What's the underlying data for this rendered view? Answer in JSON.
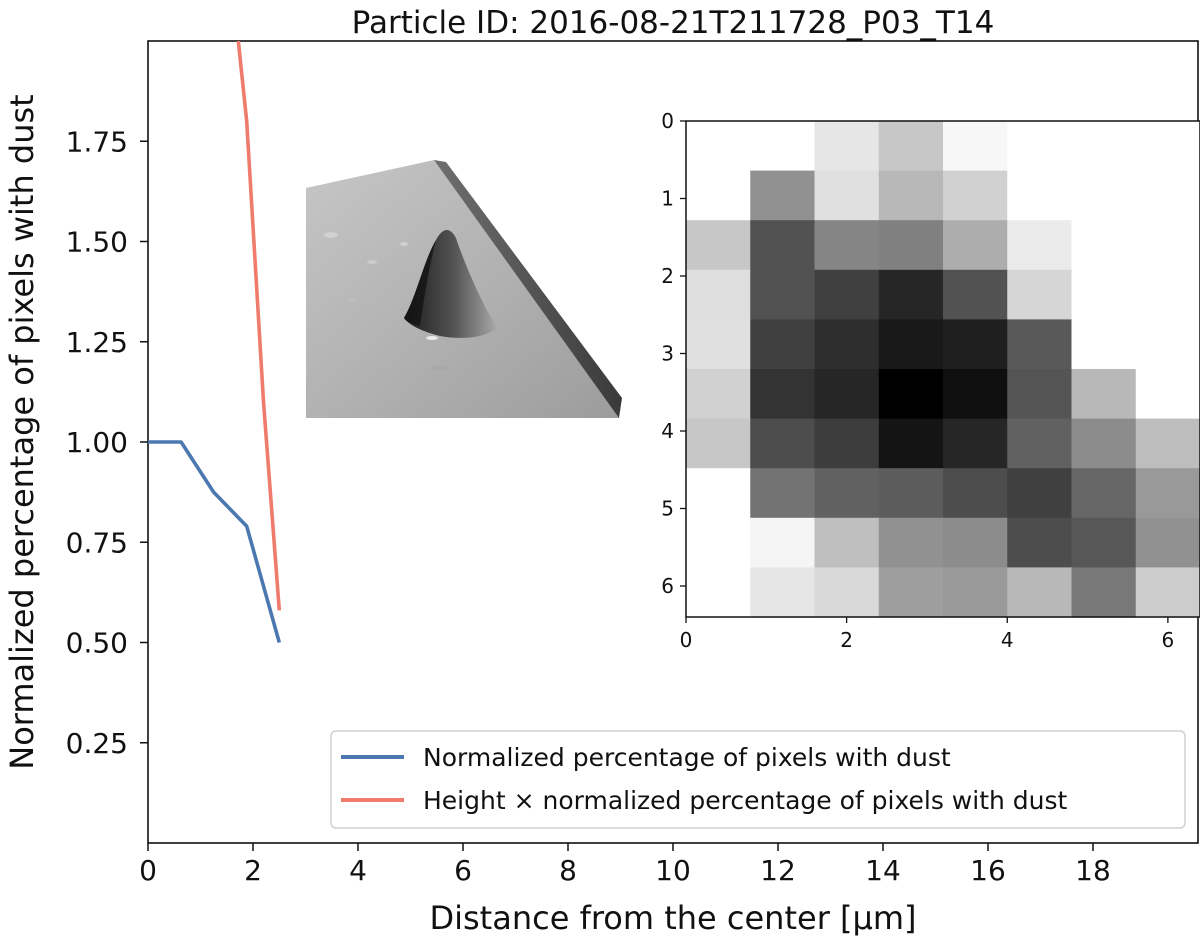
{
  "chart_data": [
    {
      "type": "line",
      "title": "Particle ID: 2016-08-21T211728_P03_T14",
      "xlabel": "Distance from the center [µm]",
      "ylabel": "Normalized percentage of pixels with dust",
      "xlim": [
        0,
        20
      ],
      "ylim": [
        0,
        2.0
      ],
      "xticks": [
        0,
        2,
        4,
        6,
        8,
        10,
        12,
        14,
        16,
        18
      ],
      "yticks": [
        0.25,
        0.5,
        0.75,
        1.0,
        1.25,
        1.5,
        1.75
      ],
      "xtick_labels": [
        "0",
        "2",
        "4",
        "6",
        "8",
        "10",
        "12",
        "14",
        "16",
        "18"
      ],
      "ytick_labels": [
        "0.25",
        "0.50",
        "0.75",
        "1.00",
        "1.25",
        "1.50",
        "1.75"
      ],
      "grid": false,
      "legend_position": "lower right",
      "series": [
        {
          "name": "Normalized percentage of pixels with dust",
          "color": "#4c78b0",
          "x": [
            0,
            0.63,
            1.25,
            1.88,
            2.5
          ],
          "y": [
            1.0,
            1.0,
            0.875,
            0.79,
            0.5
          ]
        },
        {
          "name": "Height × normalized percentage of pixels with dust",
          "color": "#ee7b6b",
          "x": [
            1.72,
            1.88,
            2.2,
            2.5
          ],
          "y": [
            2.0,
            1.8,
            1.1,
            0.58
          ]
        }
      ]
    },
    {
      "type": "heatmap",
      "description_colormap": "gray_r",
      "xticks": [
        0,
        2,
        4,
        6
      ],
      "yticks": [
        0,
        1,
        2,
        3,
        4,
        5,
        6
      ],
      "xtick_labels": [
        "0",
        "2",
        "4",
        "6"
      ],
      "ytick_labels": [
        "0",
        "1",
        "2",
        "3",
        "4",
        "5",
        "6"
      ],
      "extent": [
        0,
        6.4,
        6.4,
        0
      ],
      "values": [
        [
          0.0,
          0.0,
          0.1,
          0.22,
          0.03,
          0.0,
          0.0,
          0.0
        ],
        [
          0.0,
          0.43,
          0.12,
          0.28,
          0.18,
          0.0,
          0.0,
          0.0
        ],
        [
          0.22,
          0.68,
          0.48,
          0.5,
          0.32,
          0.08,
          0.0,
          0.0
        ],
        [
          0.13,
          0.68,
          0.75,
          0.85,
          0.68,
          0.16,
          0.0,
          0.0
        ],
        [
          0.12,
          0.75,
          0.82,
          0.9,
          0.88,
          0.65,
          0.0,
          0.0
        ],
        [
          0.18,
          0.8,
          0.85,
          1.0,
          0.94,
          0.67,
          0.28,
          0.0
        ],
        [
          0.22,
          0.7,
          0.76,
          0.92,
          0.85,
          0.62,
          0.45,
          0.26
        ],
        [
          0.0,
          0.55,
          0.62,
          0.64,
          0.7,
          0.75,
          0.6,
          0.4
        ],
        [
          0.0,
          0.04,
          0.25,
          0.43,
          0.45,
          0.7,
          0.66,
          0.43
        ],
        [
          0.0,
          0.1,
          0.15,
          0.38,
          0.4,
          0.28,
          0.53,
          0.2
        ]
      ]
    }
  ]
}
